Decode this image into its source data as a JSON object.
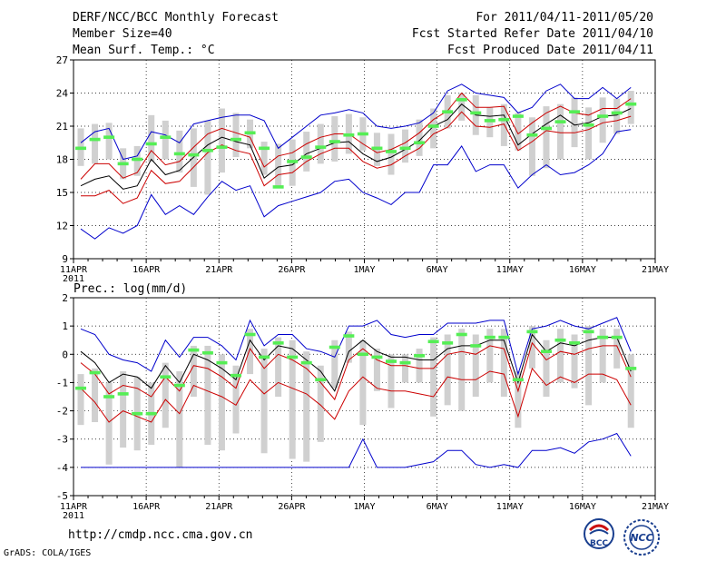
{
  "header": {
    "title": "DERF/NCC/BCC Monthly Forecast",
    "member_size": "Member Size=40",
    "variable": "Mean Surf. Temp.: °C",
    "period": "For 2011/04/11-2011/05/20",
    "refer_date": "Fcst Started Refer Date 2011/04/10",
    "produced_date": "Fcst Produced Date 2011/04/11"
  },
  "footer": {
    "url": "http://cmdp.ncc.cma.gov.cn",
    "grads": "GrADS: COLA/IGES",
    "logo_bcc": "BCC",
    "logo_ncc": "NCC"
  },
  "colors": {
    "max_line": "#0000cc",
    "mean_line": "#000000",
    "band_line": "#cc0000",
    "box": "#d0d0d0",
    "median": "#55ee55",
    "grid": "#000000"
  },
  "chart_data": [
    {
      "type": "line",
      "title": "Mean Surf. Temp.: °C",
      "x_ticks": [
        "11APR",
        "16APR",
        "21APR",
        "26APR",
        "1MAY",
        "6MAY",
        "11MAY",
        "16MAY",
        "21MAY"
      ],
      "x_year": "2011",
      "x_range": [
        0,
        40
      ],
      "ylim": [
        9,
        27
      ],
      "y_ticks": [
        "9",
        "12",
        "15",
        "18",
        "21",
        "24",
        "27"
      ],
      "series": [
        {
          "name": "max",
          "values": [
            19.5,
            20.5,
            20.8,
            18,
            18.3,
            20.5,
            20.2,
            19.5,
            21.2,
            21.5,
            21.8,
            22,
            22,
            21.5,
            19,
            20,
            21,
            22,
            22.2,
            22.5,
            22.2,
            21,
            20.8,
            21,
            21.3,
            22.2,
            24.2,
            24.8,
            24,
            23.8,
            23.6,
            22.2,
            22.7,
            24.2,
            24.8,
            23.5,
            23.5,
            24.5,
            23.5,
            24.5
          ]
        },
        {
          "name": "upper",
          "values": [
            16.2,
            17.6,
            17.6,
            16.3,
            16.8,
            18.8,
            17.5,
            17.8,
            19.1,
            20.3,
            20.8,
            20.4,
            20,
            17.3,
            18.3,
            18.6,
            19.4,
            20,
            20.3,
            20.3,
            19.4,
            18.6,
            18.9,
            19.5,
            20.4,
            21.6,
            22.4,
            24,
            22.7,
            22.7,
            22.8,
            20.3,
            21.3,
            22.2,
            22.8,
            22.2,
            22,
            22.6,
            22.6,
            23.5
          ]
        },
        {
          "name": "mean",
          "values": [
            15.6,
            16.2,
            16.5,
            15.3,
            15.6,
            18,
            16.6,
            17,
            18.2,
            19.3,
            20,
            19.6,
            19.3,
            16.3,
            17.3,
            17.5,
            18.5,
            19,
            19.5,
            19.6,
            18.5,
            17.8,
            18.2,
            18.9,
            19.7,
            21,
            21.6,
            23,
            22,
            21.9,
            22,
            19.3,
            20.3,
            21.2,
            22,
            21.1,
            21.3,
            21.9,
            22,
            22.6
          ]
        },
        {
          "name": "lower",
          "values": [
            14.7,
            14.7,
            15.2,
            14,
            14.5,
            17,
            15.8,
            16,
            17.3,
            18.6,
            19.3,
            18.8,
            18.5,
            15.6,
            16.6,
            16.8,
            17.8,
            18.5,
            19,
            19,
            17.8,
            17.2,
            17.5,
            18.3,
            19,
            20.3,
            20.9,
            22.3,
            21,
            20.9,
            21.2,
            18.8,
            19.6,
            20.6,
            20.4,
            20.4,
            20.7,
            21.3,
            21.5,
            21.9
          ]
        },
        {
          "name": "min",
          "values": [
            11.7,
            10.8,
            11.8,
            11.3,
            12,
            14.8,
            13,
            13.8,
            13,
            14.6,
            16,
            15.2,
            15.6,
            12.8,
            13.8,
            14.2,
            14.6,
            15,
            16,
            16.2,
            15,
            14.5,
            13.9,
            15,
            15,
            17.5,
            17.5,
            19.2,
            16.9,
            17.5,
            17.5,
            15.4,
            16.6,
            17.5,
            16.6,
            16.8,
            17.5,
            18.5,
            20.5,
            20.7
          ]
        },
        {
          "name": "median",
          "values": [
            19,
            19.8,
            20,
            17.6,
            18,
            19.4,
            20,
            18.5,
            18.4,
            18.8,
            19.1,
            19.8,
            20.4,
            19,
            15.5,
            17.8,
            18.2,
            19.1,
            19.6,
            20.2,
            20.3,
            19,
            18.7,
            19,
            19.5,
            21,
            22.3,
            23.4,
            22.2,
            21.5,
            21.6,
            21.9,
            20.2,
            20.8,
            21.4,
            22.3,
            21.1,
            21.9,
            22.2,
            23.0
          ]
        },
        {
          "name": "box_high",
          "values": [
            20.8,
            21.2,
            21.3,
            19,
            19.2,
            22,
            21.5,
            20.6,
            20.8,
            21.5,
            22.6,
            22.2,
            21.6,
            19.6,
            19.4,
            19.8,
            20.5,
            21.2,
            21.9,
            22.1,
            21.8,
            20.4,
            20.3,
            20.7,
            21.6,
            22.6,
            23.8,
            24,
            23.8,
            22.7,
            23,
            22.2,
            21.8,
            22.8,
            23,
            23.6,
            22.7,
            23.6,
            23.5,
            24.2
          ]
        },
        {
          "name": "box_low",
          "values": [
            17.4,
            17.6,
            18,
            16.2,
            16.5,
            17.8,
            18,
            16.8,
            15.5,
            14.8,
            16.8,
            18.2,
            19,
            16.6,
            15.4,
            15.6,
            16.9,
            17.6,
            17.8,
            18.5,
            18.8,
            17.4,
            16.6,
            17.7,
            18.3,
            19,
            20.8,
            21.5,
            20.2,
            20,
            19.2,
            18.8,
            16.5,
            17.2,
            18,
            19.1,
            18,
            19.5,
            20.3,
            21.2
          ]
        }
      ]
    },
    {
      "type": "line",
      "title": "Prec.: log(mm/d)",
      "x_ticks": [
        "11APR",
        "16APR",
        "21APR",
        "26APR",
        "1MAY",
        "6MAY",
        "11MAY",
        "16MAY",
        "21MAY"
      ],
      "x_year": "2011",
      "x_range": [
        0,
        40
      ],
      "ylim": [
        -5,
        2
      ],
      "y_ticks": [
        "-5",
        "-4",
        "-3",
        "-2",
        "-1",
        "0",
        "1",
        "2"
      ],
      "series": [
        {
          "name": "max",
          "values": [
            0.9,
            0.7,
            0,
            -0.2,
            -0.3,
            -0.6,
            0.5,
            -0.1,
            0.6,
            0.6,
            0.3,
            -0.2,
            1.2,
            0.3,
            0.7,
            0.7,
            0.2,
            0.1,
            -0.1,
            1,
            1,
            1.2,
            0.7,
            0.6,
            0.7,
            0.7,
            1.1,
            1.1,
            1.1,
            1.2,
            1.2,
            -0.7,
            0.9,
            1,
            1.2,
            1,
            0.9,
            1.1,
            1.3,
            0.1
          ]
        },
        {
          "name": "mean",
          "values": [
            0.1,
            -0.3,
            -1,
            -0.7,
            -0.8,
            -1.2,
            -0.4,
            -1,
            0,
            -0.2,
            -0.5,
            -0.9,
            0.5,
            -0.2,
            0.3,
            0.2,
            -0.2,
            -0.6,
            -1.3,
            0.1,
            0.5,
            0.1,
            -0.1,
            -0.1,
            -0.2,
            -0.2,
            0.2,
            0.3,
            0.3,
            0.5,
            0.5,
            -1,
            0.7,
            0.1,
            0.4,
            0.3,
            0.5,
            0.6,
            0.6,
            -0.6
          ]
        },
        {
          "name": "upper",
          "values": [
            -0.3,
            -0.7,
            -1.4,
            -1.1,
            -1.2,
            -1.5,
            -0.8,
            -1.3,
            -0.4,
            -0.5,
            -0.8,
            -1.2,
            0.2,
            -0.5,
            0,
            -0.2,
            -0.5,
            -1,
            -1.6,
            -0.2,
            0.2,
            -0.2,
            -0.4,
            -0.4,
            -0.5,
            -0.5,
            0,
            0.1,
            0,
            0.3,
            0.2,
            -1.3,
            0.4,
            -0.2,
            0.1,
            0,
            0.2,
            0.3,
            0.3,
            -0.8
          ]
        },
        {
          "name": "lower",
          "values": [
            -1.2,
            -1.7,
            -2.4,
            -2,
            -2.2,
            -2.4,
            -1.6,
            -2.1,
            -1.1,
            -1.3,
            -1.5,
            -1.8,
            -0.9,
            -1.4,
            -1,
            -1.2,
            -1.4,
            -1.8,
            -2.3,
            -1.3,
            -0.8,
            -1.2,
            -1.3,
            -1.3,
            -1.4,
            -1.5,
            -0.8,
            -0.9,
            -0.9,
            -0.6,
            -0.7,
            -2.2,
            -0.5,
            -1.1,
            -0.8,
            -1,
            -0.7,
            -0.7,
            -0.9,
            -1.8
          ]
        },
        {
          "name": "min",
          "values": [
            -4,
            -4,
            -4,
            -4,
            -4,
            -4,
            -4,
            -4,
            -4,
            -4,
            -4,
            -4,
            -4,
            -4,
            -4,
            -4,
            -4,
            -4,
            -4,
            -4,
            -3,
            -4,
            -4,
            -4,
            -3.9,
            -3.8,
            -3.4,
            -3.4,
            -3.9,
            -4,
            -3.9,
            -4,
            -3.4,
            -3.4,
            -3.3,
            -3.5,
            -3.1,
            -3,
            -2.8,
            -3.6
          ]
        },
        {
          "name": "median",
          "values": [
            -1.2,
            -0.65,
            -1.5,
            -1.4,
            -2.1,
            -2.1,
            -0.8,
            -1.1,
            0.15,
            0.05,
            -0.3,
            -0.75,
            0.7,
            -0.1,
            0.4,
            -0.1,
            -0.3,
            -0.9,
            0.25,
            0.65,
            0,
            -0.1,
            -0.25,
            -0.3,
            -0.05,
            0.45,
            0.4,
            0.7,
            0.3,
            0.6,
            0.6,
            -0.9,
            0.8,
            0.1,
            0.5,
            0.4,
            0.8,
            0.6,
            0.6,
            -0.5
          ]
        },
        {
          "name": "box_high",
          "values": [
            -0.7,
            -0.5,
            -1,
            -0.6,
            -0.8,
            -1,
            -0.3,
            -0.6,
            0.3,
            0.3,
            0,
            -0.4,
            0.9,
            0.2,
            0.6,
            0.5,
            0.1,
            -0.4,
            0.5,
            0.8,
            0.5,
            0.2,
            0,
            0,
            0.2,
            0.6,
            0.7,
            0.9,
            0.7,
            0.9,
            0.9,
            -0.6,
            1,
            0.5,
            0.9,
            0.7,
            1,
            0.9,
            0.9,
            0
          ]
        },
        {
          "name": "box_low",
          "values": [
            -2.5,
            -2.4,
            -3.9,
            -3.3,
            -3.4,
            -3.2,
            -2.6,
            -4,
            -1.5,
            -3.2,
            -3.4,
            -2.8,
            -0.7,
            -3.5,
            -1.5,
            -3.7,
            -3.8,
            -3.1,
            -1.2,
            -0.3,
            -2.5,
            -1.3,
            -1.9,
            -1,
            -1,
            -2.2,
            -1.8,
            -2,
            -1.5,
            -1,
            -1.5,
            -2.6,
            -0.5,
            -1.5,
            -1,
            -1.2,
            -1.8,
            -1,
            -0.5,
            -2.6
          ]
        }
      ]
    }
  ]
}
